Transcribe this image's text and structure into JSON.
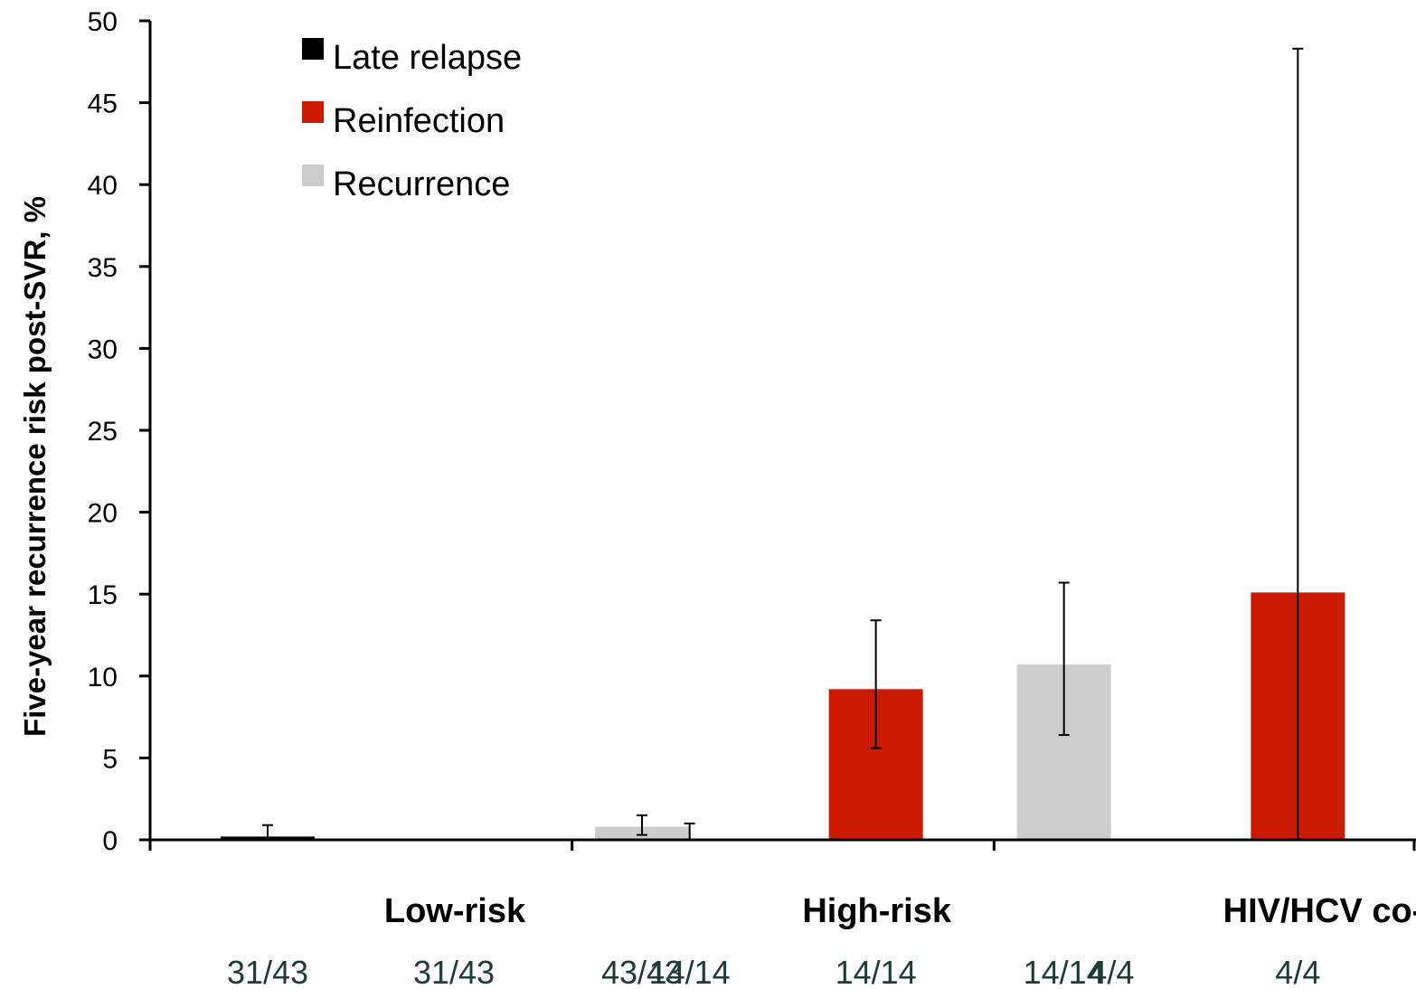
{
  "chart_data": {
    "type": "bar",
    "ylabel": "Five-year recurrence risk post-SVR, %",
    "xlabel": "",
    "ylim": [
      0,
      50
    ],
    "yticks": [
      0,
      5,
      10,
      15,
      20,
      25,
      30,
      35,
      40,
      45,
      50
    ],
    "grid": false,
    "legend_position": "top-left",
    "categories": [
      "Low-risk",
      "High-risk",
      "HIV/HCV co-infected"
    ],
    "series": [
      {
        "name": "Late relapse",
        "color": "#000000",
        "values": [
          0.2,
          0.0,
          0.0
        ],
        "error_low": [
          0.0,
          0.0,
          null
        ],
        "error_high": [
          0.9,
          1.0,
          null
        ],
        "n_labels": [
          "31/43",
          "14/14",
          "4/4"
        ]
      },
      {
        "name": "Reinfection",
        "color": "#cc1a00",
        "values": [
          0.0,
          9.2,
          15.1
        ],
        "error_low": [
          null,
          5.6,
          0.0
        ],
        "error_high": [
          null,
          13.4,
          48.3
        ],
        "n_labels": [
          "31/43",
          "14/14",
          "4/4"
        ]
      },
      {
        "name": "Recurrence",
        "color": "#cccccc",
        "values": [
          0.8,
          10.7,
          15.1
        ],
        "error_low": [
          0.3,
          6.4,
          0.0
        ],
        "error_high": [
          1.5,
          15.7,
          48.3
        ],
        "n_labels": [
          "43/43",
          "14/14",
          "4/4"
        ]
      }
    ]
  }
}
